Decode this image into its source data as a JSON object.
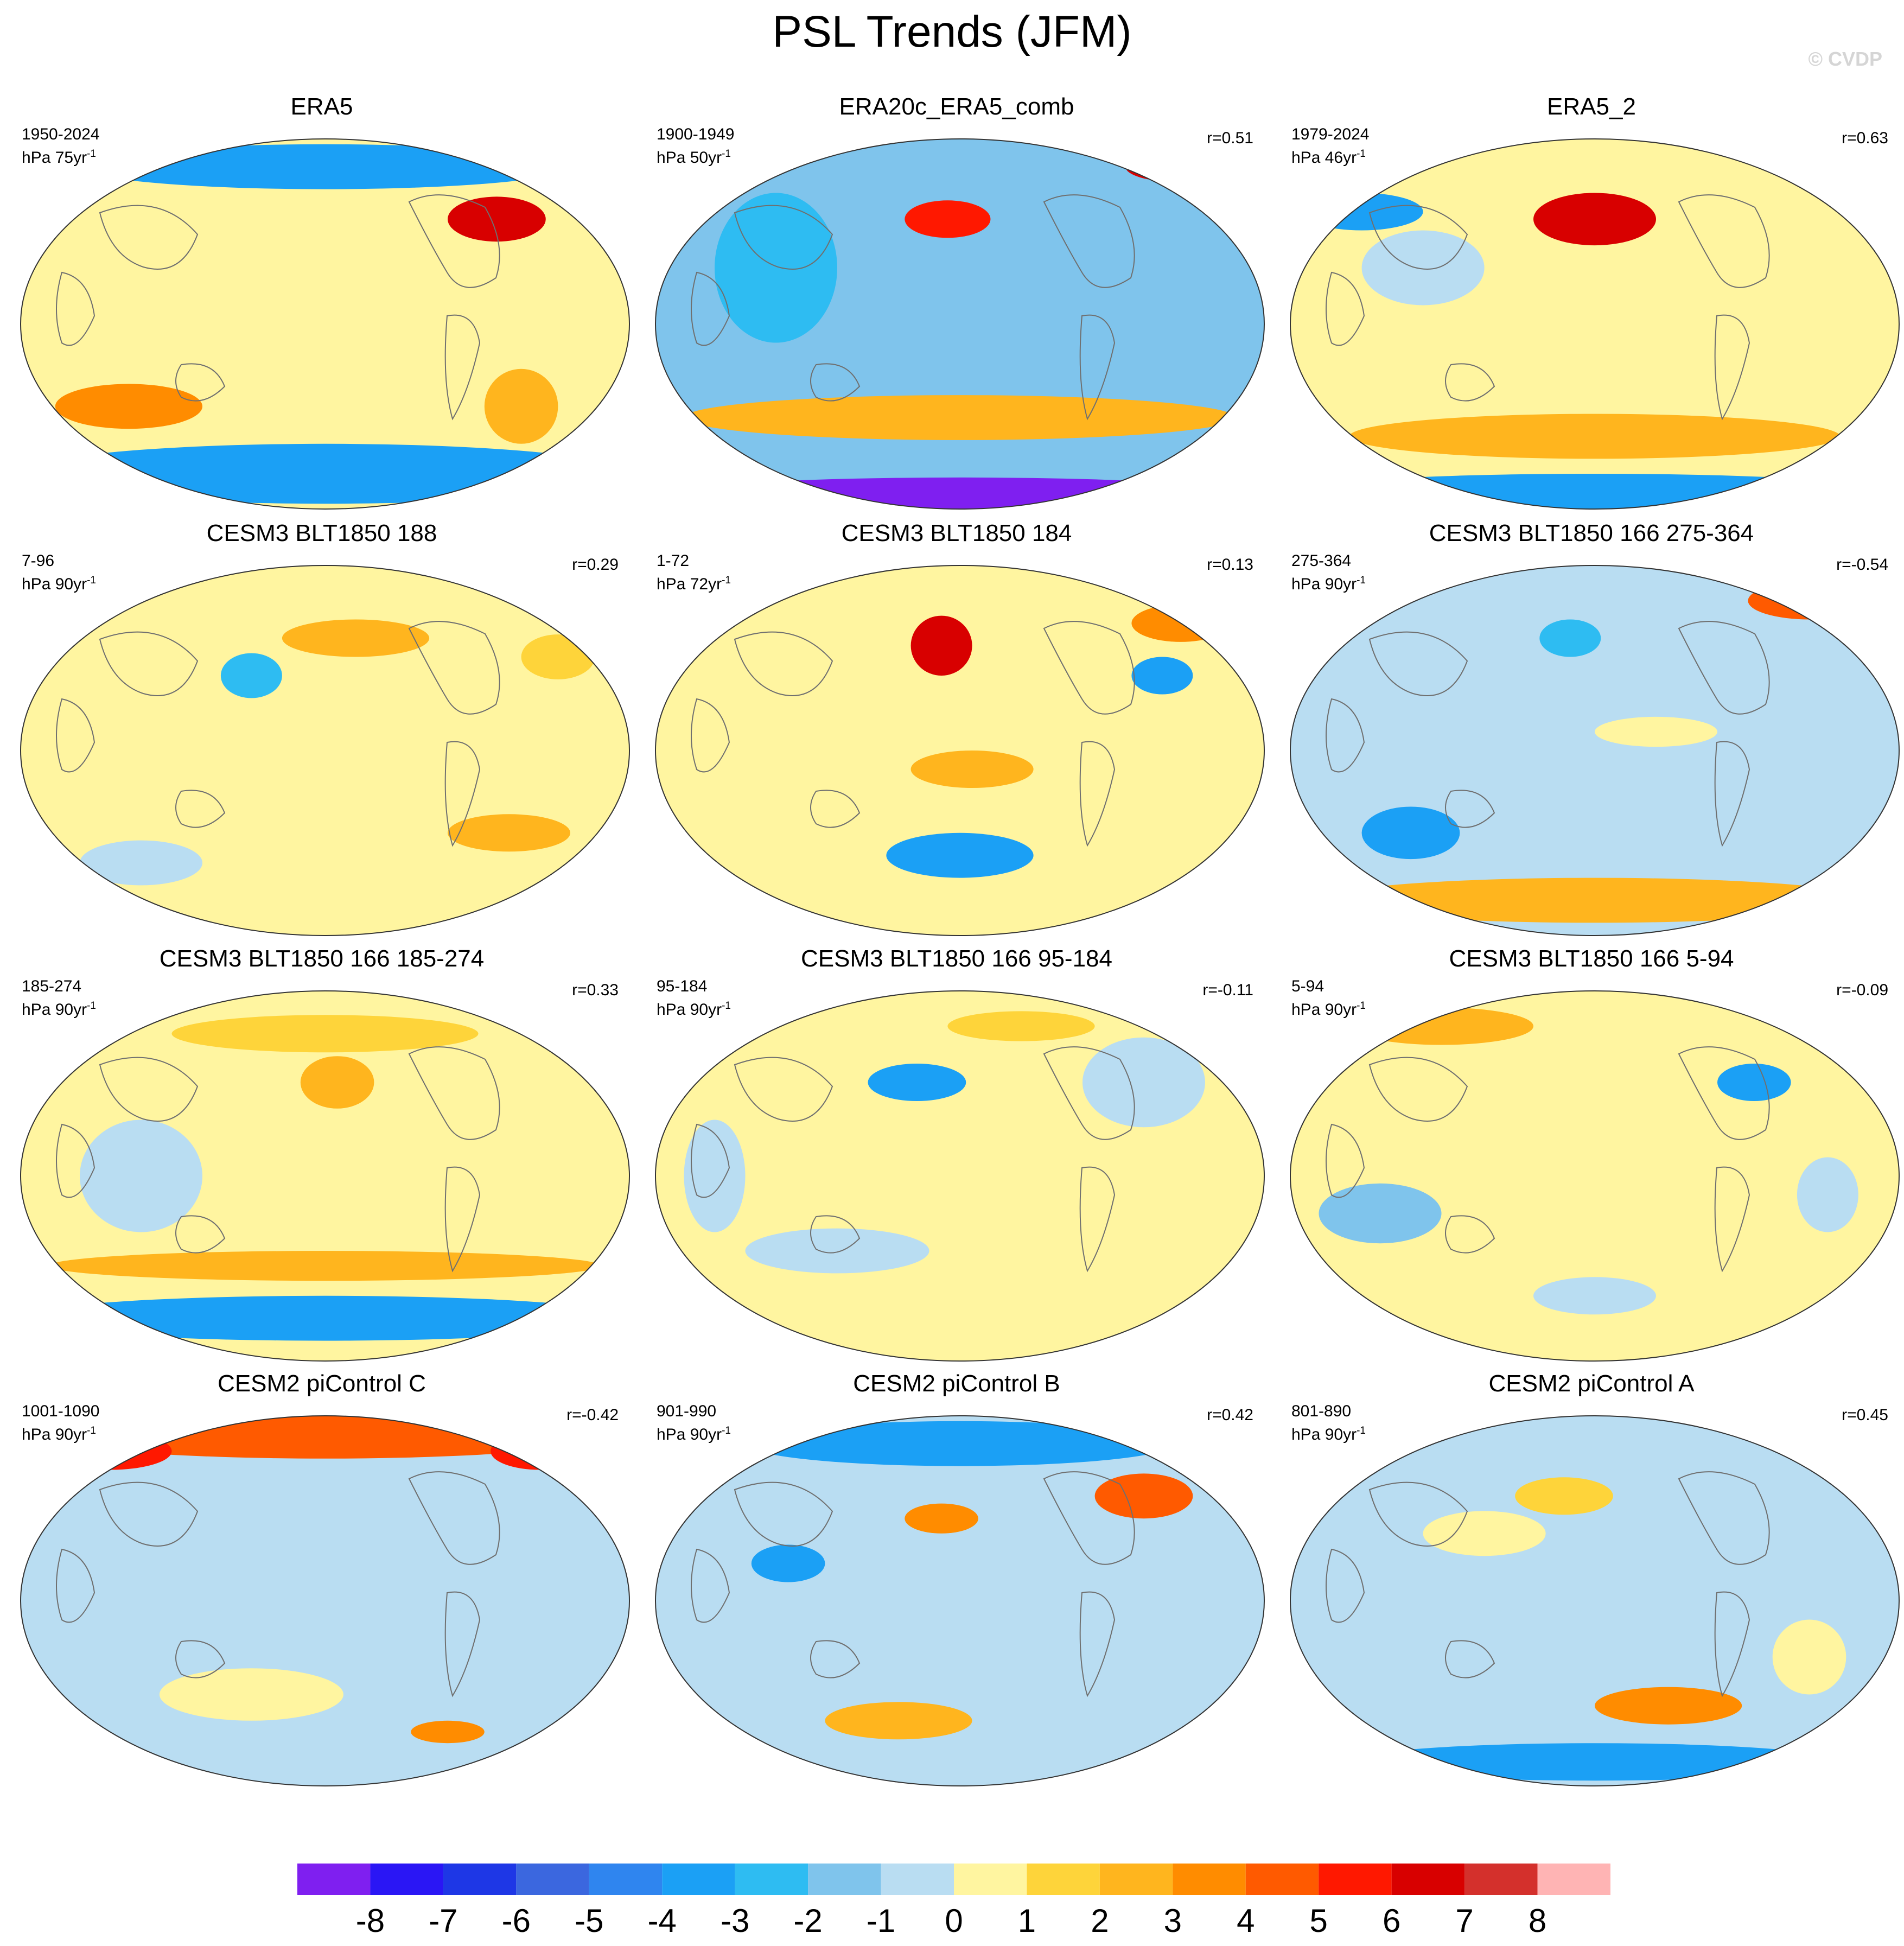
{
  "title": "PSL Trends (JFM)",
  "watermark": "© CVDP",
  "chart_data": {
    "type": "heatmap",
    "projection": "Mollweide-style global maps (Pacific-centered)",
    "colorbar": {
      "levels": [
        -8,
        -7,
        -6,
        -5,
        -4,
        -3,
        -2,
        -1,
        0,
        1,
        2,
        3,
        4,
        5,
        6,
        7,
        8
      ],
      "colors": [
        "#7f1ff0",
        "#2a16f5",
        "#1e37e6",
        "#3b67df",
        "#2f85ef",
        "#1ba0f5",
        "#2ebcf2",
        "#7fc4ec",
        "#b9ddf2",
        "#fff5a0",
        "#fed43a",
        "#ffb51e",
        "#ff8c00",
        "#ff5a00",
        "#ff1800",
        "#d80000",
        "#d4302c",
        "#ffb4b4"
      ]
    },
    "panels": [
      {
        "title": "ERA5",
        "period": "1950-2024",
        "units_base": "hPa 75yr",
        "units_exp": "-1",
        "corr": ""
      },
      {
        "title": "ERA20c_ERA5_comb",
        "period": "1900-1949",
        "units_base": "hPa 50yr",
        "units_exp": "-1",
        "corr": "r=0.51"
      },
      {
        "title": "ERA5_2",
        "period": "1979-2024",
        "units_base": "hPa 46yr",
        "units_exp": "-1",
        "corr": "r=0.63"
      },
      {
        "title": "CESM3 BLT1850 188",
        "period": "7-96",
        "units_base": "hPa 90yr",
        "units_exp": "-1",
        "corr": "r=0.29"
      },
      {
        "title": "CESM3 BLT1850 184",
        "period": "1-72",
        "units_base": "hPa 72yr",
        "units_exp": "-1",
        "corr": "r=0.13"
      },
      {
        "title": "CESM3 BLT1850 166 275-364",
        "period": "275-364",
        "units_base": "hPa 90yr",
        "units_exp": "-1",
        "corr": "r=-0.54"
      },
      {
        "title": "CESM3 BLT1850 166 185-274",
        "period": "185-274",
        "units_base": "hPa 90yr",
        "units_exp": "-1",
        "corr": "r=0.33"
      },
      {
        "title": "CESM3 BLT1850 166 95-184",
        "period": "95-184",
        "units_base": "hPa 90yr",
        "units_exp": "-1",
        "corr": "r=-0.11"
      },
      {
        "title": "CESM3 BLT1850 166 5-94",
        "period": "5-94",
        "units_base": "hPa 90yr",
        "units_exp": "-1",
        "corr": "r=-0.09"
      },
      {
        "title": "CESM2 piControl C",
        "period": "1001-1090",
        "units_base": "hPa 90yr",
        "units_exp": "-1",
        "corr": "r=-0.42"
      },
      {
        "title": "CESM2 piControl B",
        "period": "901-990",
        "units_base": "hPa 90yr",
        "units_exp": "-1",
        "corr": "r=0.42"
      },
      {
        "title": "CESM2 piControl A",
        "period": "801-890",
        "units_base": "hPa 90yr",
        "units_exp": "-1",
        "corr": "r=0.45"
      }
    ]
  }
}
